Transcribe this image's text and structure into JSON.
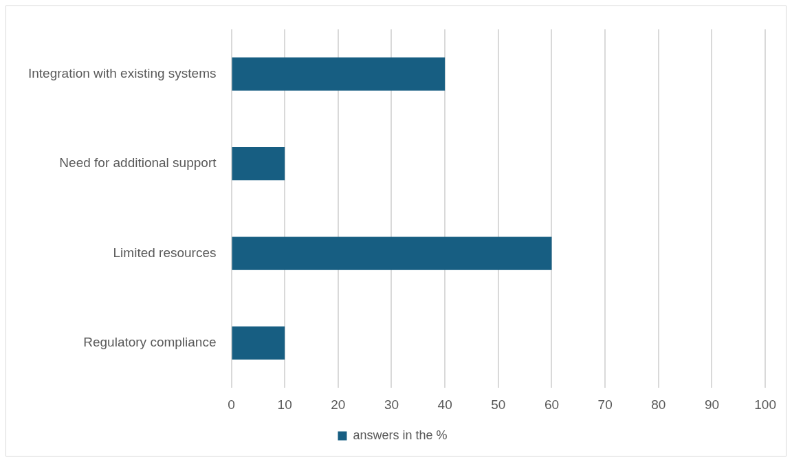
{
  "chart_data": {
    "type": "bar",
    "orientation": "horizontal",
    "categories": [
      "Integration with existing systems",
      "Need for additional support",
      "Limited resources",
      "Regulatory compliance"
    ],
    "series": [
      {
        "name": "answers in the %",
        "color": "#175e82",
        "values": [
          40,
          10,
          60,
          10
        ]
      }
    ],
    "xlim": [
      0,
      100
    ],
    "xticks": [
      0,
      10,
      20,
      30,
      40,
      50,
      60,
      70,
      80,
      90,
      100
    ],
    "grid": "x",
    "legend": "bottom"
  }
}
